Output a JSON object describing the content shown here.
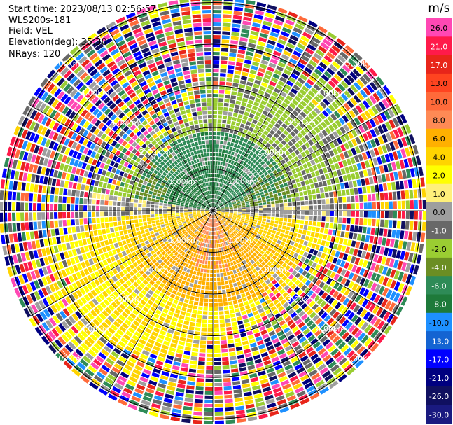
{
  "header": {
    "start_time": "Start time: 2023/08/13 02:56:57",
    "instrument": "WLS200s-181",
    "field": "Field: VEL",
    "elevation": "Elevation(deg): 35.30",
    "nrays": "NRays: 120"
  },
  "colorbar": {
    "unit": "m/s",
    "labels": [
      "26.0",
      "21.0",
      "17.0",
      "13.0",
      "10.0",
      "8.0",
      "6.0",
      "4.0",
      "2.0",
      "1.0",
      "0.0",
      "-1.0",
      "-2.0",
      "-4.0",
      "-6.0",
      "-8.0",
      "-10.0",
      "-13.0",
      "-17.0",
      "-21.0",
      "-26.0",
      "-30.0"
    ],
    "colors": [
      "#ff48b4",
      "#ff1a4a",
      "#e8251a",
      "#ff4420",
      "#ff6a3a",
      "#ff8a55",
      "#ffb000",
      "#ffd400",
      "#ffff00",
      "#fff07a",
      "#9e9e9e",
      "#686868",
      "#9acd32",
      "#6b8e23",
      "#2e8b57",
      "#1e7a3a",
      "#1e90ff",
      "#1464d2",
      "#0000ff",
      "#000080",
      "#101060",
      "#1a1a80"
    ]
  },
  "chart_data": {
    "type": "heatmap",
    "subtype": "polar PPI radar scan",
    "field": "VEL",
    "unit": "m/s",
    "elevation_deg": 35.3,
    "nrays": 120,
    "color_range": [
      -30.0,
      26.0
    ],
    "range_ring_labels": [
      "1.00km",
      "2.00km",
      "3.00km",
      "4.00km",
      "5.00km"
    ],
    "range_rings_km": [
      1,
      2,
      3,
      4,
      5
    ],
    "spokes_deg": [
      0,
      30,
      60,
      90,
      120,
      150,
      180,
      210,
      240,
      270,
      300,
      330
    ],
    "description_regions": [
      {
        "region": "near north-west",
        "approx_value": -8.0
      },
      {
        "region": "north",
        "approx_value": -4.0
      },
      {
        "region": "south",
        "approx_value": 8.0
      },
      {
        "region": "far range",
        "approx_value": "noise"
      }
    ]
  }
}
